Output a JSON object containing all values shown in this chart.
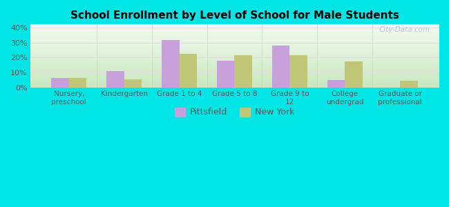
{
  "title": "School Enrollment by Level of School for Male Students",
  "categories": [
    "Nursery,\npreschool",
    "Kindergarten",
    "Grade 1 to 4",
    "Grade 5 to 8",
    "Grade 9 to\n12",
    "College\nundergrad",
    "Graduate or\nprofessional"
  ],
  "pittsfield_values": [
    6.5,
    11.0,
    31.5,
    18.0,
    28.0,
    5.0,
    0.0
  ],
  "newyork_values": [
    6.5,
    5.5,
    22.5,
    21.5,
    21.5,
    17.5,
    4.5
  ],
  "pittsfield_color": "#c8a0dc",
  "newyork_color": "#c0c878",
  "background_outer": "#00e5e5",
  "ylim": [
    0,
    42
  ],
  "yticks": [
    0,
    10,
    20,
    30,
    40
  ],
  "ytick_labels": [
    "0%",
    "10%",
    "20%",
    "30%",
    "40%"
  ],
  "bar_width": 0.32,
  "legend_labels": [
    "Pittsfield",
    "New York"
  ],
  "watermark": "City-Data.com"
}
